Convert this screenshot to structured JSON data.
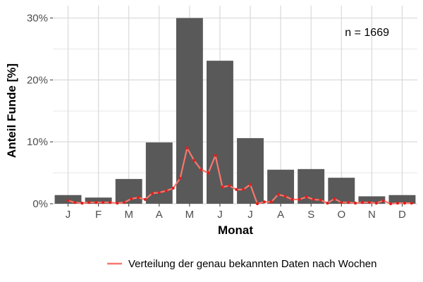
{
  "chart_data": {
    "type": "bar",
    "title": "",
    "xlabel": "Monat",
    "ylabel": "Anteil Funde [%]",
    "ylim": [
      0,
      32
    ],
    "yticks": [
      0,
      10,
      20,
      30
    ],
    "ytick_labels": [
      "0%",
      "10%",
      "20%",
      "30%"
    ],
    "grid": true,
    "categories": [
      "J",
      "F",
      "M",
      "A",
      "M",
      "J",
      "J",
      "A",
      "S",
      "O",
      "N",
      "D"
    ],
    "values": [
      1.4,
      1.0,
      4.0,
      9.9,
      30.0,
      23.1,
      10.6,
      5.5,
      5.6,
      4.2,
      1.2,
      1.4
    ],
    "annotation": "n = 1669",
    "series": [
      {
        "name": "Verteilung der genau bekannten Daten nach Wochen",
        "type": "line",
        "x": [
          1,
          1.23,
          1.46,
          1.69,
          1.92,
          2.15,
          2.38,
          2.62,
          2.85,
          3.08,
          3.31,
          3.54,
          3.77,
          4.0,
          4.23,
          4.46,
          4.69,
          4.92,
          5.15,
          5.38,
          5.62,
          5.85,
          6.08,
          6.31,
          6.54,
          6.77,
          7.0,
          7.23,
          7.46,
          7.69,
          7.92,
          8.15,
          8.38,
          8.62,
          8.85,
          9.08,
          9.31,
          9.54,
          9.77,
          10.0,
          10.23,
          10.46,
          10.69,
          10.92,
          11.15,
          11.38,
          11.62,
          11.85,
          12.08,
          12.31
        ],
        "y": [
          0.5,
          0.2,
          0.1,
          0.2,
          0.2,
          0.2,
          0.2,
          0.1,
          0.2,
          0.8,
          1.0,
          0.7,
          1.7,
          1.8,
          2.1,
          2.5,
          4.1,
          9.0,
          7.0,
          5.5,
          5.0,
          7.8,
          2.7,
          2.9,
          2.3,
          2.3,
          3.1,
          0.0,
          0.3,
          0.3,
          1.5,
          1.2,
          0.7,
          0.7,
          1.1,
          0.7,
          0.6,
          0.1,
          0.8,
          0.2,
          0.2,
          0.1,
          0.2,
          0.2,
          0.1,
          0.5,
          0.0,
          0.1,
          0.1,
          0.1
        ],
        "color": "#f8766d"
      }
    ],
    "colors": {
      "bar": "#595959",
      "grid": "#d9d9d9",
      "line": "#f8766d",
      "points": "#e0201c"
    },
    "legend_position": "bottom-right"
  }
}
